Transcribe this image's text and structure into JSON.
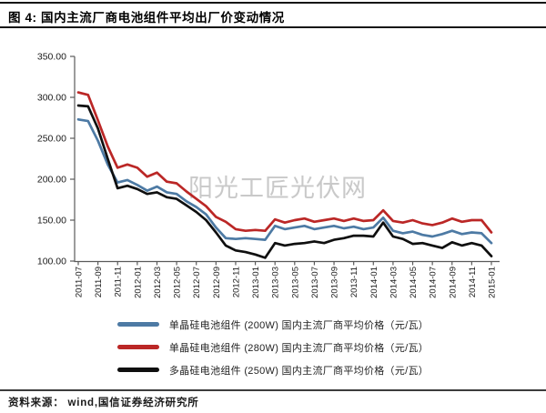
{
  "header": {
    "title": "图 4: 国内主流厂商电池组件平均出厂价变动情况"
  },
  "watermark": "阳光工匠光伏网",
  "footer": {
    "source": "资料来源： wind,国信证券经济研究所"
  },
  "chart_data": {
    "type": "line",
    "title": "国内主流厂商电池组件平均出厂价变动情况",
    "xlabel": "",
    "ylabel": "",
    "ylim": [
      100,
      350
    ],
    "grid": false,
    "legend_position": "bottom",
    "y_ticks": [
      100,
      150,
      200,
      250,
      300,
      350
    ],
    "y_tick_labels": [
      "100.00",
      "150.00",
      "200.00",
      "250.00",
      "300.00",
      "350.00"
    ],
    "x": [
      "2011-07",
      "2011-08",
      "2011-09",
      "2011-10",
      "2011-11",
      "2011-12",
      "2012-01",
      "2012-02",
      "2012-03",
      "2012-04",
      "2012-05",
      "2012-06",
      "2012-07",
      "2012-08",
      "2012-09",
      "2012-10",
      "2012-11",
      "2012-12",
      "2013-01",
      "2013-02",
      "2013-03",
      "2013-04",
      "2013-05",
      "2013-06",
      "2013-07",
      "2013-08",
      "2013-09",
      "2013-10",
      "2013-11",
      "2013-12",
      "2014-01",
      "2014-02",
      "2014-03",
      "2014-04",
      "2014-05",
      "2014-06",
      "2014-07",
      "2014-08",
      "2014-09",
      "2014-10",
      "2014-11",
      "2014-12",
      "2015-01"
    ],
    "x_tick_labels": [
      "2011-07",
      "2011-09",
      "2011-11",
      "2012-01",
      "2012-03",
      "2012-05",
      "2012-07",
      "2012-09",
      "2012-11",
      "2013-01",
      "2013-03",
      "2013-05",
      "2013-07",
      "2013-09",
      "2013-11",
      "2014-01",
      "2014-03",
      "2014-05",
      "2014-07",
      "2014-09",
      "2014-11",
      "2015-01"
    ],
    "series": [
      {
        "id": "mono-200w",
        "name": "单晶硅电池组件 (200W) 国内主流厂商平均价格（元/瓦）",
        "color": "#4d7aa4",
        "values": [
          273,
          271,
          247,
          218,
          196,
          199,
          193,
          186,
          191,
          184,
          182,
          173,
          166,
          157,
          141,
          128,
          127,
          128,
          127,
          126,
          143,
          139,
          141,
          143,
          139,
          141,
          143,
          140,
          142,
          139,
          141,
          153,
          137,
          134,
          136,
          132,
          130,
          133,
          137,
          133,
          135,
          134,
          122
        ]
      },
      {
        "id": "mono-280w",
        "name": "单晶硅电池组件 (280W) 国内主流厂商平均价格（元/瓦）",
        "color": "#bb2726",
        "values": [
          306,
          303,
          272,
          240,
          214,
          218,
          214,
          203,
          208,
          197,
          195,
          185,
          176,
          167,
          154,
          148,
          139,
          137,
          138,
          137,
          151,
          147,
          150,
          152,
          148,
          150,
          152,
          149,
          152,
          149,
          150,
          162,
          149,
          147,
          150,
          146,
          144,
          147,
          152,
          148,
          150,
          150,
          135
        ]
      },
      {
        "id": "poly-250w",
        "name": "多晶硅电池组件 (250W) 国内主流厂商平均价格（元/瓦）",
        "color": "#0f0f0f",
        "values": [
          290,
          289,
          262,
          225,
          189,
          192,
          188,
          182,
          184,
          178,
          176,
          168,
          160,
          150,
          135,
          119,
          113,
          111,
          108,
          104,
          122,
          119,
          121,
          122,
          124,
          122,
          126,
          128,
          131,
          131,
          130,
          147,
          130,
          127,
          121,
          122,
          119,
          116,
          123,
          119,
          122,
          119,
          106
        ]
      }
    ]
  }
}
